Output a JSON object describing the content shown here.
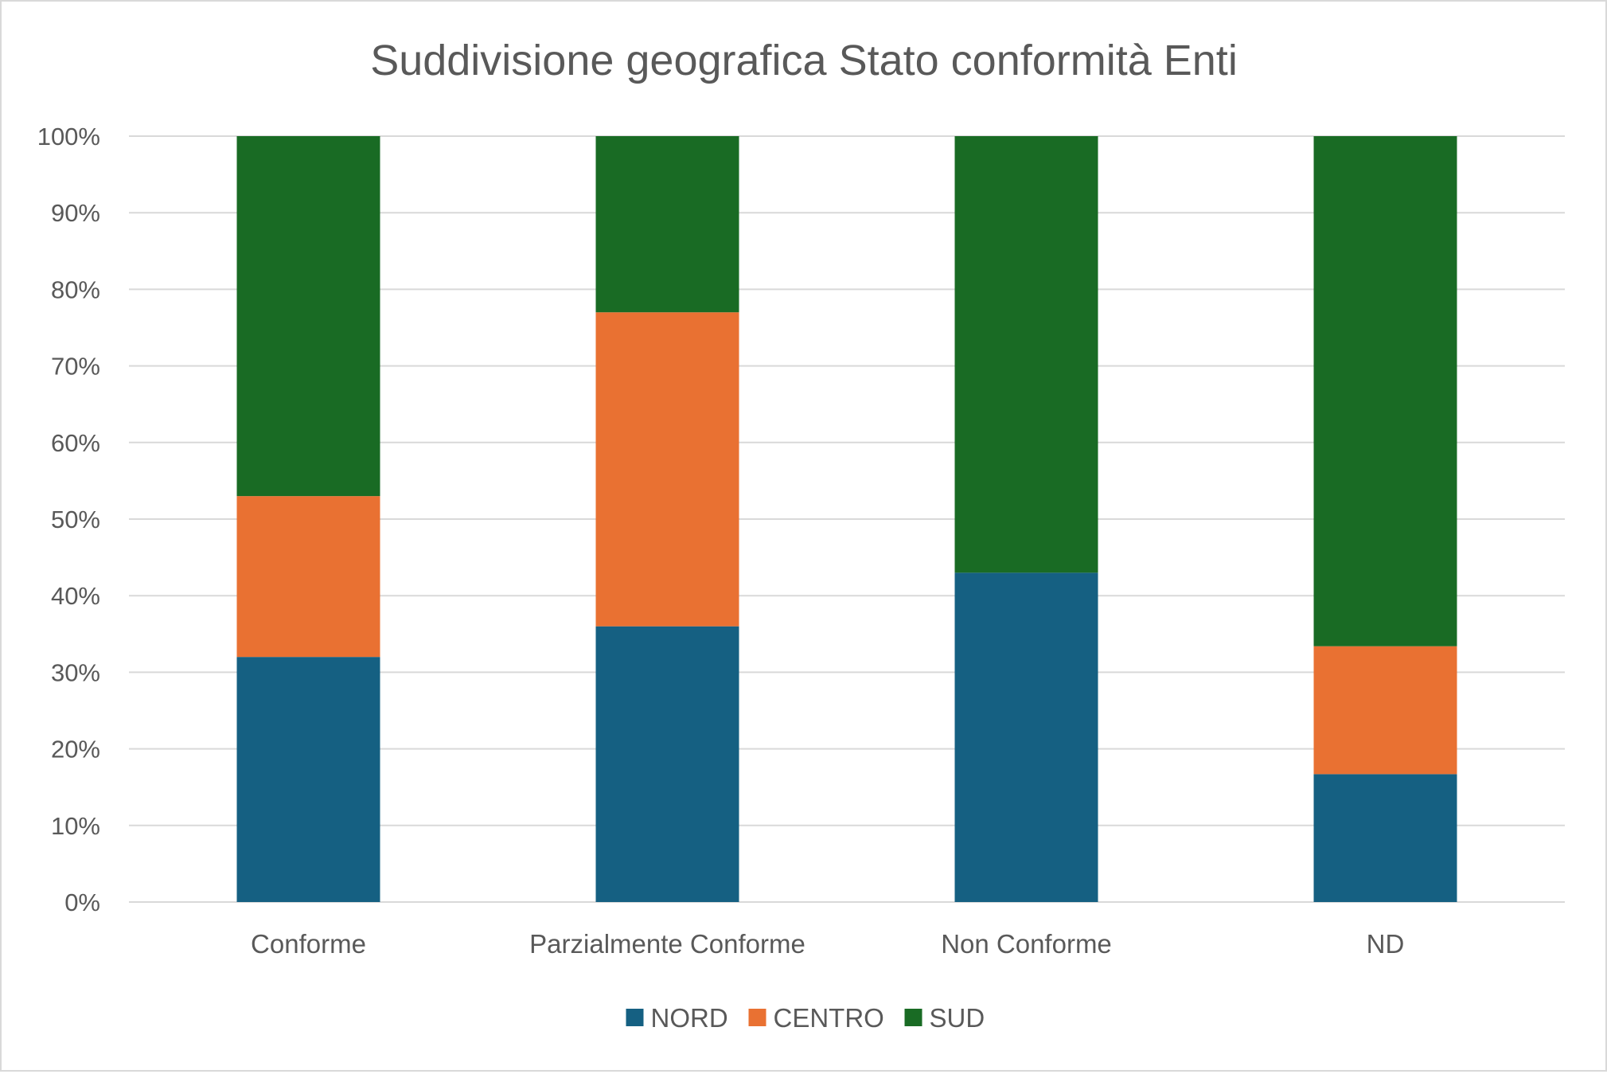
{
  "chart_data": {
    "type": "bar",
    "stacked": "percent",
    "title": "Suddivisione geografica Stato conformità Enti",
    "xlabel": "",
    "ylabel": "",
    "ylim": [
      0,
      100
    ],
    "yticks": [
      "0%",
      "10%",
      "20%",
      "30%",
      "40%",
      "50%",
      "60%",
      "70%",
      "80%",
      "90%",
      "100%"
    ],
    "grid": true,
    "legend_position": "bottom",
    "categories": [
      "Conforme",
      "Parzialmente Conforme",
      "Non Conforme",
      "ND"
    ],
    "series": [
      {
        "name": "NORD",
        "color": "#156082",
        "values": [
          32,
          36,
          43,
          16.7
        ]
      },
      {
        "name": "CENTRO",
        "color": "#E97132",
        "values": [
          21,
          41,
          0,
          16.7
        ]
      },
      {
        "name": "SUD",
        "color": "#196B24",
        "values": [
          47,
          23,
          57,
          66.6
        ]
      }
    ]
  }
}
